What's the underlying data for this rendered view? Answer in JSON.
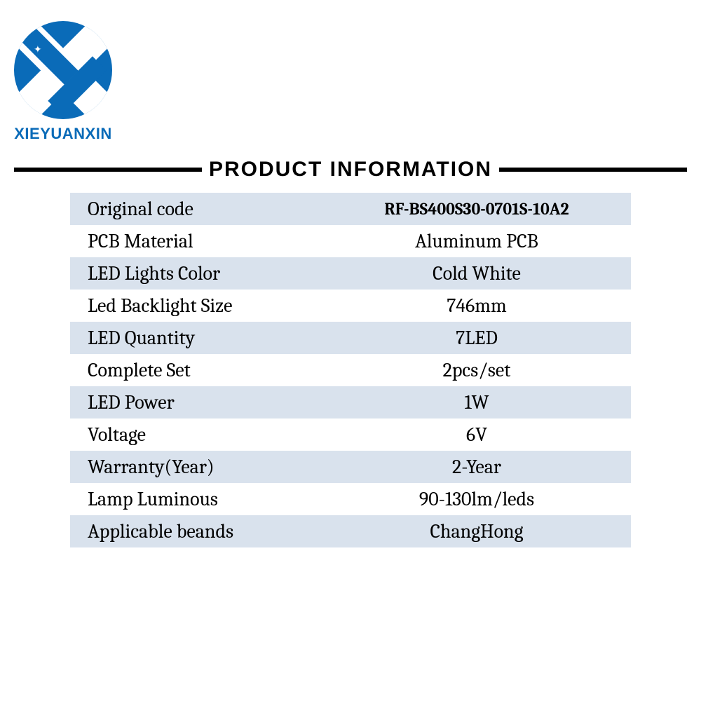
{
  "brand": {
    "name": "XIEYUANXIN",
    "logo_color": "#0a6bb8"
  },
  "section_title": "PRODUCT INFORMATION",
  "table": {
    "row_odd_color": "#d9e2ed",
    "row_even_color": "#ffffff",
    "label_fontsize": 28,
    "value_fontsize": 28,
    "text_color": "#000000",
    "rows": [
      {
        "label": "Original code",
        "value": "RF-BS400S30-0701S-10A2",
        "value_small": true
      },
      {
        "label": "PCB Material",
        "value": "Aluminum PCB"
      },
      {
        "label": "LED Lights Color",
        "value": "Cold White"
      },
      {
        "label": "Led Backlight Size",
        "value": "746mm"
      },
      {
        "label": "LED Quantity",
        "value": "7LED"
      },
      {
        "label": "Complete Set",
        "value": "2pcs/set"
      },
      {
        "label": "LED Power",
        "value": "1W"
      },
      {
        "label": "Voltage",
        "value": "6V"
      },
      {
        "label": "Warranty(Year)",
        "value": "2-Year"
      },
      {
        "label": "Lamp Luminous",
        "value": "90-130lm/leds"
      },
      {
        "label": "Applicable beands",
        "value": "ChangHong"
      }
    ]
  }
}
